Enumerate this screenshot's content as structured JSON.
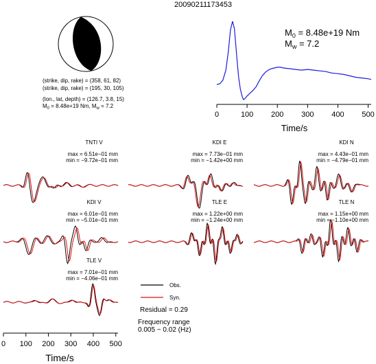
{
  "title": "20090211173453",
  "colors": {
    "observed": "#000000",
    "synthetic": "#e01010",
    "stf": "#1a1adf",
    "beachball": "#000000"
  },
  "source": {
    "line1": "(strike, dip, rake) = (358, 61, 82)",
    "line2": "(strike, dip, rake) = (195, 30, 105)",
    "line3": "(lon., lat, depth) = (126.7, 3.8, 15)",
    "line4_prefix": "M",
    "line4_sub": "0",
    "line4_mid": " = 8.48e+19 Nm, M",
    "line4_sub2": "w",
    "line4_suffix": " = 7.2"
  },
  "moment": {
    "m0_prefix": "M",
    "m0_sub": "0",
    "m0_value": " = 8.48e+19 Nm",
    "mw_prefix": "M",
    "mw_sub": "w",
    "mw_value": " = 7.2"
  },
  "legend": {
    "obs": "Obs.",
    "syn": "Syn."
  },
  "residual": "Residual = 0.29",
  "frequency_label": "Frequency range",
  "frequency_value": "0.005 − 0.02 (Hz)",
  "chart_data": [
    {
      "type": "line",
      "name": "source time function",
      "xlabel": "Time/s",
      "xlim": [
        0,
        510
      ],
      "xticks": [
        "0",
        "100",
        "200",
        "300",
        "400",
        "500"
      ],
      "x": [
        0,
        10,
        20,
        30,
        38,
        45,
        52,
        58,
        62,
        67,
        72,
        78,
        84,
        88,
        92,
        96,
        100,
        110,
        120,
        130,
        140,
        150,
        160,
        170,
        180,
        190,
        200,
        210,
        220,
        240,
        260,
        280,
        300,
        320,
        340,
        360,
        380,
        400,
        420,
        440,
        460,
        480,
        500,
        510
      ],
      "values": [
        0.12,
        0.13,
        0.18,
        0.32,
        0.58,
        0.88,
        1.0,
        0.9,
        0.7,
        0.45,
        0.22,
        0.05,
        -0.05,
        -0.09,
        -0.08,
        -0.06,
        -0.04,
        0.0,
        0.04,
        0.09,
        0.17,
        0.24,
        0.29,
        0.32,
        0.34,
        0.35,
        0.36,
        0.36,
        0.35,
        0.34,
        0.33,
        0.32,
        0.33,
        0.32,
        0.31,
        0.3,
        0.28,
        0.27,
        0.26,
        0.24,
        0.22,
        0.21,
        0.2,
        0.19
      ]
    },
    {
      "type": "line",
      "name": "waveforms",
      "xlabel": "Time/s",
      "xlim": [
        0,
        510
      ],
      "xticks": [
        "0",
        "100",
        "200",
        "300",
        "400",
        "500"
      ],
      "series": [
        "Obs.",
        "Syn."
      ],
      "panels": [
        {
          "title": "TNTI V",
          "max": "max = 6.51e−01 mm",
          "min": "min = −9.72e−01 mm",
          "wavelets": [
            [
              0.26,
              -0.55,
              0.06
            ],
            [
              0.21,
              0.35,
              0.04
            ],
            [
              0.35,
              0.22,
              0.05
            ],
            [
              0.44,
              -0.12,
              0.04
            ],
            [
              0.55,
              0.08,
              0.05
            ],
            [
              0.68,
              -0.05,
              0.06
            ]
          ],
          "syn_shift": 0.012
        },
        {
          "title": "KDI E",
          "max": "max = 7.73e−01 mm",
          "min": "min = −1.42e+00 mm",
          "wavelets": [
            [
              0.62,
              -0.85,
              0.05
            ],
            [
              0.52,
              0.35,
              0.04
            ],
            [
              0.72,
              0.42,
              0.04
            ],
            [
              0.82,
              -0.2,
              0.04
            ],
            [
              0.92,
              0.12,
              0.04
            ]
          ],
          "syn_shift": -0.01
        },
        {
          "title": "KDI N",
          "max": "max = 4.43e−01 mm",
          "min": "min = −4.79e−01 mm",
          "wavelets": [
            [
              0.33,
              -0.7,
              0.035
            ],
            [
              0.4,
              0.85,
              0.03
            ],
            [
              0.45,
              -0.6,
              0.03
            ],
            [
              0.55,
              0.7,
              0.035
            ],
            [
              0.64,
              -0.55,
              0.03
            ],
            [
              0.74,
              0.4,
              0.04
            ],
            [
              0.85,
              -0.25,
              0.04
            ]
          ],
          "syn_shift": 0.01
        },
        {
          "title": "KDI V",
          "max": "max = 6.01e−01 mm",
          "min": "min = −5.01e−01 mm",
          "wavelets": [
            [
              0.22,
              -0.45,
              0.06
            ],
            [
              0.38,
              0.2,
              0.06
            ],
            [
              0.56,
              -0.75,
              0.04
            ],
            [
              0.63,
              0.55,
              0.04
            ],
            [
              0.72,
              -0.35,
              0.04
            ],
            [
              0.86,
              0.18,
              0.05
            ]
          ],
          "syn_shift": 0.015
        },
        {
          "title": "TLE E",
          "max": "max = 1.22e+00 mm",
          "min": "min = −1.24e+00 mm",
          "wavelets": [
            [
              0.55,
              0.35,
              0.035
            ],
            [
              0.62,
              -0.5,
              0.03
            ],
            [
              0.69,
              0.65,
              0.03
            ],
            [
              0.76,
              -0.8,
              0.03
            ],
            [
              0.82,
              0.55,
              0.03
            ],
            [
              0.89,
              -0.45,
              0.03
            ],
            [
              0.95,
              0.3,
              0.03
            ]
          ],
          "syn_shift": 0.008
        },
        {
          "title": "TLE N",
          "max": "max = 1.15e+00 mm",
          "min": "min = −1.10e+00 mm",
          "wavelets": [
            [
              0.42,
              -0.4,
              0.03
            ],
            [
              0.5,
              0.3,
              0.03
            ],
            [
              0.6,
              -0.55,
              0.03
            ],
            [
              0.67,
              0.8,
              0.03
            ],
            [
              0.74,
              -0.7,
              0.03
            ],
            [
              0.82,
              0.55,
              0.03
            ],
            [
              0.9,
              -0.4,
              0.03
            ]
          ],
          "syn_shift": 0.01
        },
        {
          "title": "TLE V",
          "max": "max = 7.01e−01 mm",
          "min": "min = −4.06e−01 mm",
          "wavelets": [
            [
              0.28,
              0.08,
              0.05
            ],
            [
              0.42,
              0.12,
              0.06
            ],
            [
              0.6,
              0.1,
              0.05
            ],
            [
              0.78,
              0.65,
              0.035
            ],
            [
              0.84,
              -0.45,
              0.035
            ],
            [
              0.92,
              0.12,
              0.05
            ]
          ],
          "syn_shift": 0.006
        }
      ]
    }
  ]
}
